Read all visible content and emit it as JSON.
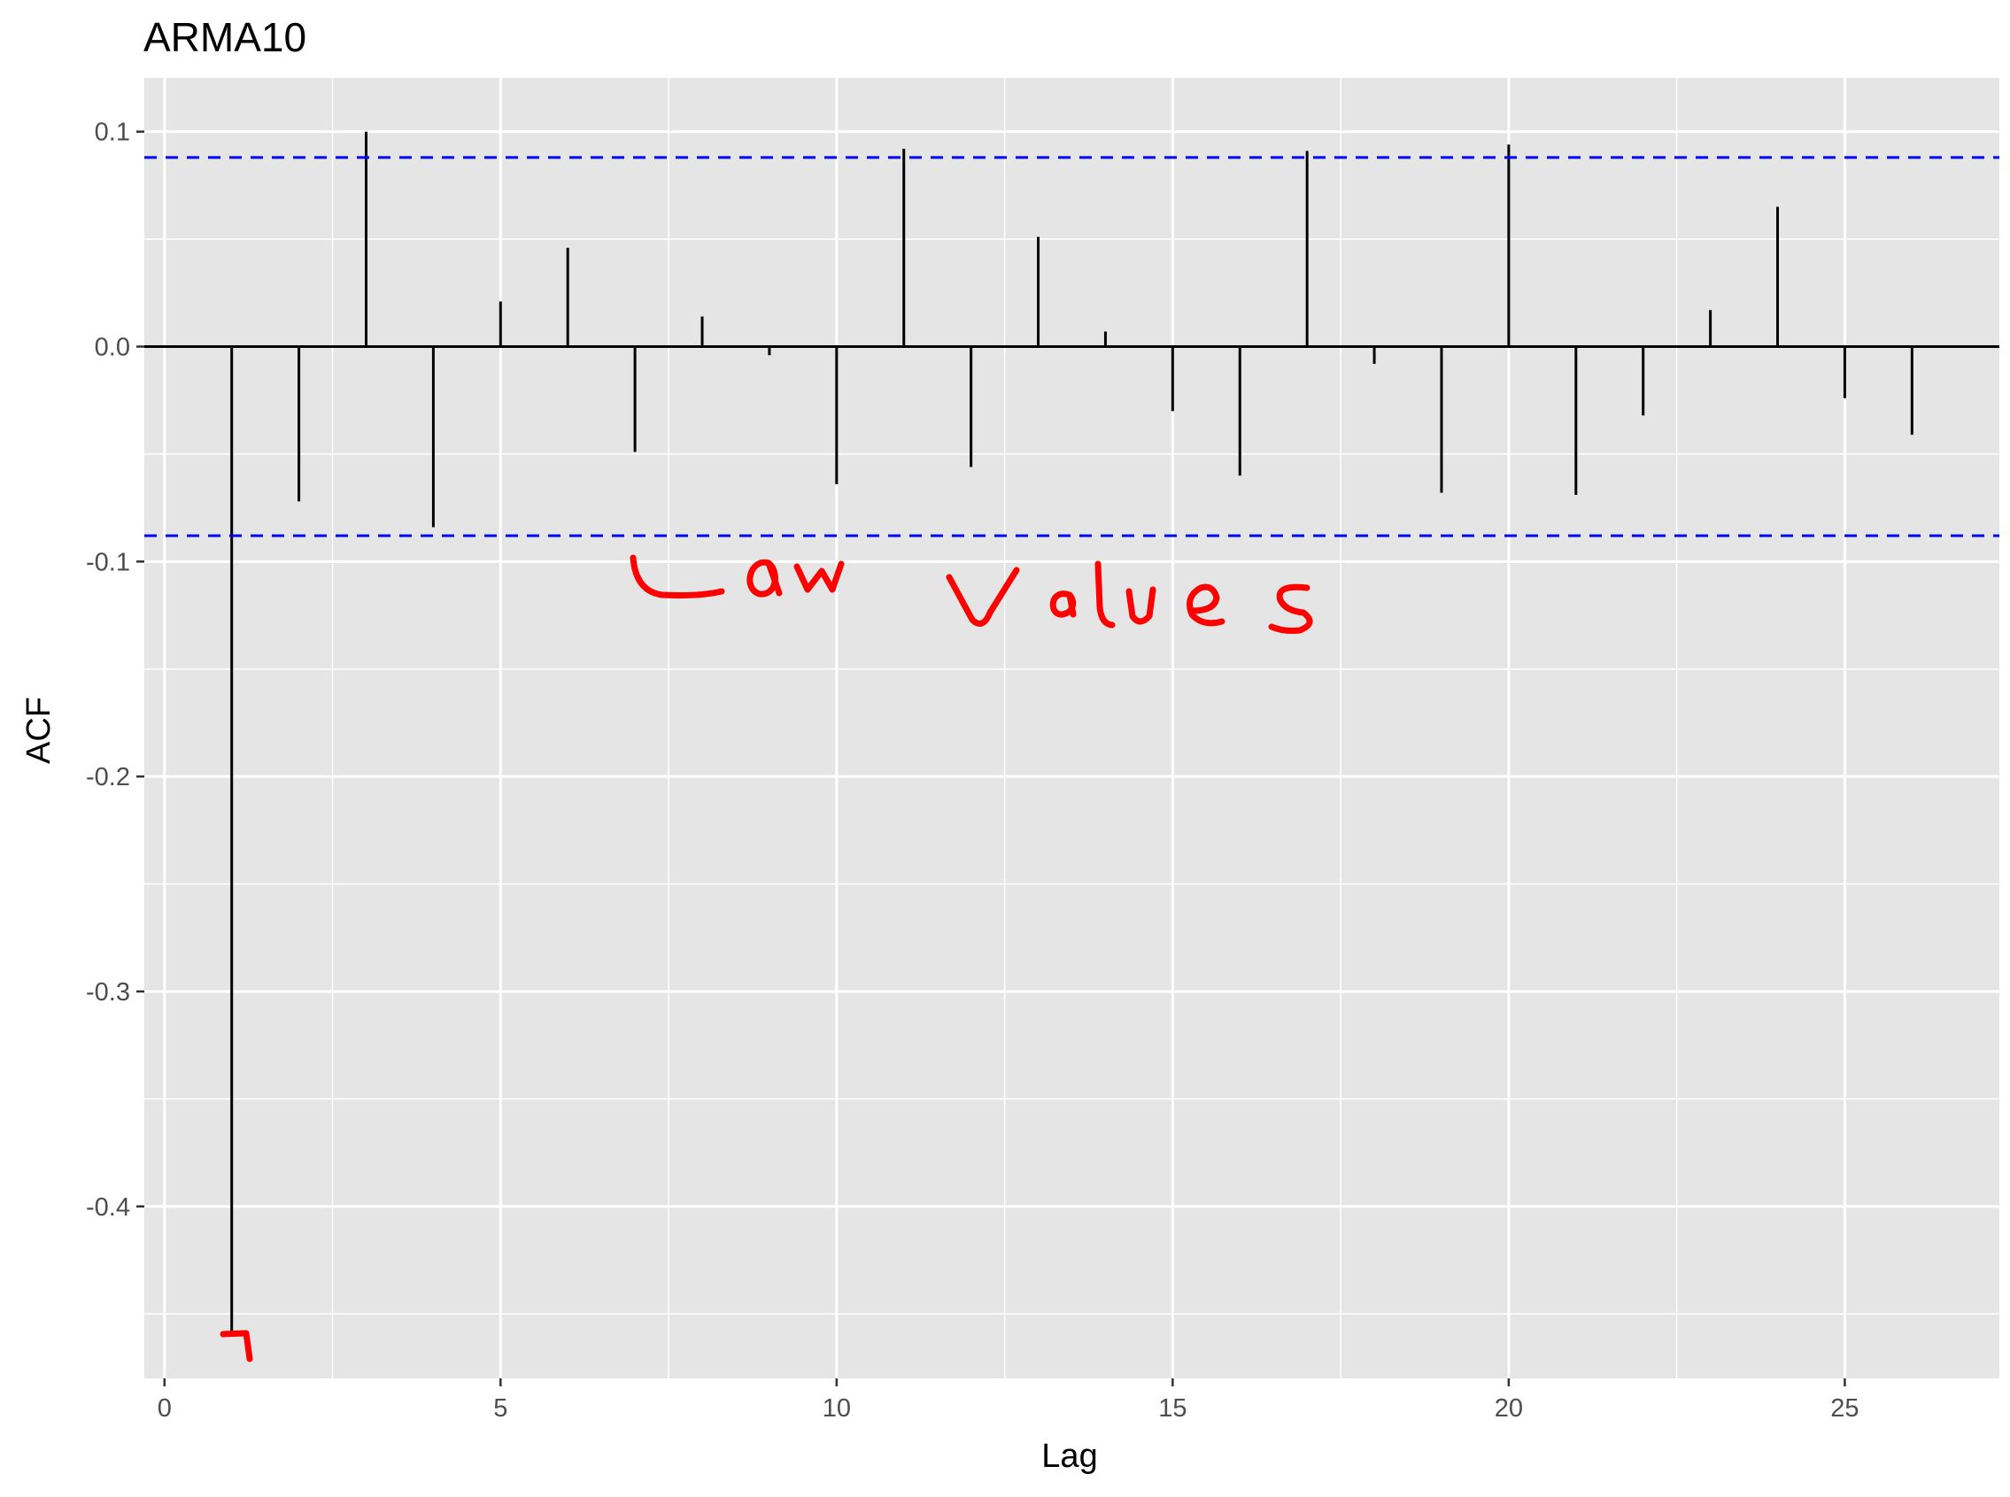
{
  "chart_data": {
    "type": "bar",
    "title": "ARMA10",
    "xlabel": "Lag",
    "ylabel": "ACF",
    "xlim": [
      -0.3,
      27.3
    ],
    "ylim": [
      -0.48,
      0.125
    ],
    "x_ticks": [
      0,
      5,
      10,
      15,
      20,
      25
    ],
    "y_ticks": [
      0.1,
      0.0,
      -0.1,
      -0.2,
      -0.3,
      -0.4
    ],
    "y_tick_labels": [
      "0.1",
      "0.0",
      "-0.1",
      "-0.2",
      "-0.3",
      "-0.4"
    ],
    "grid": true,
    "confidence_bounds": [
      0.088,
      -0.088
    ],
    "lags": [
      1,
      2,
      3,
      4,
      5,
      6,
      7,
      8,
      9,
      10,
      11,
      12,
      13,
      14,
      15,
      16,
      17,
      18,
      19,
      20,
      21,
      22,
      23,
      24,
      25,
      26
    ],
    "values": [
      -0.46,
      -0.072,
      0.1,
      -0.084,
      0.021,
      0.046,
      -0.049,
      0.014,
      -0.004,
      -0.064,
      0.092,
      -0.056,
      0.051,
      0.007,
      -0.03,
      -0.06,
      0.091,
      -0.008,
      -0.068,
      0.094,
      -0.069,
      -0.032,
      0.017,
      0.065,
      -0.024,
      -0.041
    ],
    "annotations": [
      {
        "text": "Low values",
        "style": "handwritten",
        "color": "#ff0000"
      },
      {
        "text": "7",
        "style": "handwritten",
        "color": "#ff0000"
      }
    ],
    "colors": {
      "panel": "#e5e5e5",
      "grid": "#ffffff",
      "bars": "#000000",
      "bounds": "#0000ff",
      "annotation": "#ff0000"
    }
  }
}
